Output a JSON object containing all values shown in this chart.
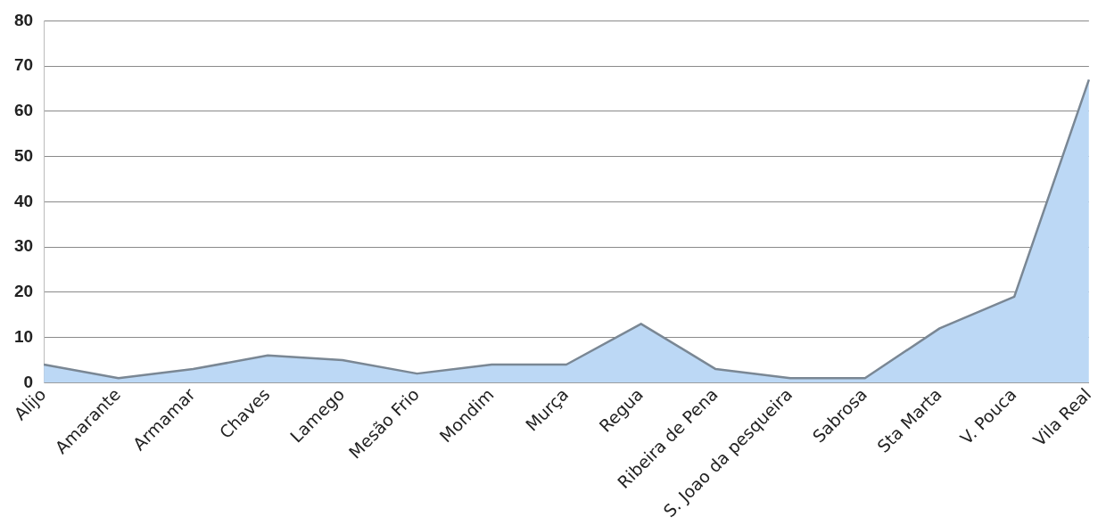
{
  "chart_data": {
    "type": "area",
    "categories": [
      "Alijo",
      "Amarante",
      "Armamar",
      "Chaves",
      "Lamego",
      "Mesão Frio",
      "Mondim",
      "Murça",
      "Regua",
      "Ribeira de Pena",
      "S. Joao da pesqueira",
      "Sabrosa",
      "Sta Marta",
      "V. Pouca",
      "Vila Real"
    ],
    "series": [
      {
        "color": "#bcd8f5",
        "values": [
          4,
          1,
          3,
          6,
          5,
          2,
          4,
          4,
          13,
          3,
          1,
          1,
          12,
          19,
          67
        ]
      }
    ],
    "ylim": [
      0,
      80
    ],
    "yticks": [
      0,
      10,
      20,
      30,
      40,
      50,
      60,
      70,
      80
    ],
    "grid": "y",
    "legend": false
  }
}
